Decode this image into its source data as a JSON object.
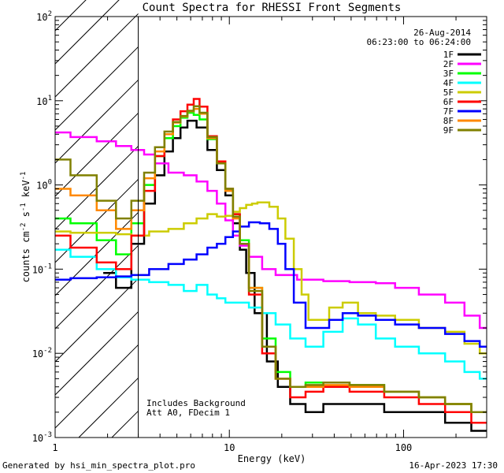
{
  "chart_data": {
    "type": "line",
    "title": "Count Spectra for RHESSI Front Segments",
    "xlabel": "Energy (keV)",
    "ylabel_parts": [
      "counts cm",
      "-2",
      " s",
      "-1",
      " keV",
      "-1"
    ],
    "xscale": "log",
    "yscale": "log",
    "xlim": [
      1,
      300
    ],
    "ylim": [
      0.001,
      100
    ],
    "x_ticks": [
      {
        "value": 1,
        "label": "1"
      },
      {
        "value": 10,
        "label": "10"
      },
      {
        "value": 100,
        "label": "100"
      }
    ],
    "y_ticks": [
      {
        "value": 0.001,
        "base": "10",
        "exp": "-3"
      },
      {
        "value": 0.01,
        "base": "10",
        "exp": "-2"
      },
      {
        "value": 0.1,
        "base": "10",
        "exp": "-1"
      },
      {
        "value": 1,
        "base": "10",
        "exp": "0"
      },
      {
        "value": 10,
        "base": "10",
        "exp": "1"
      },
      {
        "value": 100,
        "base": "10",
        "exp": "2"
      }
    ],
    "hatched_region": [
      1,
      3
    ],
    "date": "26-Aug-2014",
    "time_range": "06:23:00 to 06:24:00",
    "annotations": [
      "Includes Background",
      "Att A0, FDecim 1"
    ],
    "series": [
      {
        "name": "1F",
        "color": "#000000",
        "points": [
          [
            2,
            0.09
          ],
          [
            2.5,
            0.06
          ],
          [
            3,
            0.2
          ],
          [
            3.5,
            0.6
          ],
          [
            4,
            1.3
          ],
          [
            4.5,
            2.5
          ],
          [
            5,
            3.6
          ],
          [
            5.5,
            4.8
          ],
          [
            6,
            5.8
          ],
          [
            7,
            4.8
          ],
          [
            8,
            2.6
          ],
          [
            9,
            1.5
          ],
          [
            10,
            0.75
          ],
          [
            11,
            0.35
          ],
          [
            12,
            0.17
          ],
          [
            13,
            0.09
          ],
          [
            15,
            0.03
          ],
          [
            18,
            0.008
          ],
          [
            20,
            0.004
          ],
          [
            25,
            0.0025
          ],
          [
            30,
            0.002
          ],
          [
            40,
            0.0025
          ],
          [
            60,
            0.0025
          ],
          [
            100,
            0.002
          ],
          [
            150,
            0.002
          ],
          [
            200,
            0.0015
          ],
          [
            300,
            0.0012
          ]
        ]
      },
      {
        "name": "2F",
        "color": "#ff00ff",
        "points": [
          [
            1,
            4.2
          ],
          [
            1.5,
            3.7
          ],
          [
            2,
            3.3
          ],
          [
            2.5,
            2.9
          ],
          [
            3,
            2.6
          ],
          [
            3.5,
            2.3
          ],
          [
            4,
            1.8
          ],
          [
            5,
            1.4
          ],
          [
            6,
            1.3
          ],
          [
            7,
            1.1
          ],
          [
            8,
            0.85
          ],
          [
            9,
            0.6
          ],
          [
            10,
            0.38
          ],
          [
            11,
            0.25
          ],
          [
            12,
            0.19
          ],
          [
            14,
            0.14
          ],
          [
            17,
            0.1
          ],
          [
            20,
            0.085
          ],
          [
            30,
            0.075
          ],
          [
            40,
            0.072
          ],
          [
            60,
            0.07
          ],
          [
            80,
            0.068
          ],
          [
            100,
            0.06
          ],
          [
            150,
            0.05
          ],
          [
            200,
            0.04
          ],
          [
            250,
            0.028
          ],
          [
            300,
            0.02
          ]
        ]
      },
      {
        "name": "3F",
        "color": "#00ff00",
        "points": [
          [
            1,
            0.4
          ],
          [
            1.5,
            0.35
          ],
          [
            2,
            0.22
          ],
          [
            2.5,
            0.15
          ],
          [
            3,
            0.35
          ],
          [
            3.5,
            1.0
          ],
          [
            4,
            2.2
          ],
          [
            4.5,
            3.6
          ],
          [
            5,
            5.0
          ],
          [
            5.5,
            6.3
          ],
          [
            6,
            7.2
          ],
          [
            6.5,
            6.8
          ],
          [
            7,
            6.0
          ],
          [
            8,
            3.5
          ],
          [
            9,
            1.8
          ],
          [
            10,
            0.9
          ],
          [
            11,
            0.45
          ],
          [
            12,
            0.22
          ],
          [
            14,
            0.06
          ],
          [
            17,
            0.015
          ],
          [
            20,
            0.006
          ],
          [
            25,
            0.004
          ],
          [
            30,
            0.0045
          ],
          [
            40,
            0.0045
          ],
          [
            60,
            0.0042
          ],
          [
            100,
            0.0035
          ],
          [
            150,
            0.003
          ],
          [
            200,
            0.0025
          ],
          [
            300,
            0.002
          ]
        ]
      },
      {
        "name": "4F",
        "color": "#00ffff",
        "points": [
          [
            1,
            0.17
          ],
          [
            1.5,
            0.14
          ],
          [
            2,
            0.1
          ],
          [
            2.5,
            0.08
          ],
          [
            3,
            0.075
          ],
          [
            4,
            0.07
          ],
          [
            5,
            0.065
          ],
          [
            6,
            0.055
          ],
          [
            7,
            0.065
          ],
          [
            8,
            0.05
          ],
          [
            9,
            0.045
          ],
          [
            10,
            0.04
          ],
          [
            12,
            0.04
          ],
          [
            14,
            0.035
          ],
          [
            17,
            0.03
          ],
          [
            20,
            0.022
          ],
          [
            25,
            0.015
          ],
          [
            30,
            0.012
          ],
          [
            40,
            0.018
          ],
          [
            50,
            0.026
          ],
          [
            60,
            0.022
          ],
          [
            80,
            0.015
          ],
          [
            100,
            0.012
          ],
          [
            150,
            0.01
          ],
          [
            200,
            0.008
          ],
          [
            250,
            0.006
          ],
          [
            300,
            0.005
          ]
        ]
      },
      {
        "name": "5F",
        "color": "#cccc00",
        "points": [
          [
            1,
            0.28
          ],
          [
            1.5,
            0.27
          ],
          [
            2,
            0.27
          ],
          [
            2.5,
            0.26
          ],
          [
            3,
            0.25
          ],
          [
            4,
            0.28
          ],
          [
            5,
            0.3
          ],
          [
            6,
            0.35
          ],
          [
            7,
            0.4
          ],
          [
            8,
            0.45
          ],
          [
            9,
            0.42
          ],
          [
            10,
            0.43
          ],
          [
            11,
            0.48
          ],
          [
            12,
            0.53
          ],
          [
            13,
            0.58
          ],
          [
            14,
            0.6
          ],
          [
            15,
            0.62
          ],
          [
            16,
            0.62
          ],
          [
            18,
            0.55
          ],
          [
            20,
            0.4
          ],
          [
            22,
            0.23
          ],
          [
            25,
            0.1
          ],
          [
            27,
            0.05
          ],
          [
            30,
            0.025
          ],
          [
            35,
            0.025
          ],
          [
            40,
            0.035
          ],
          [
            50,
            0.04
          ],
          [
            60,
            0.03
          ],
          [
            80,
            0.028
          ],
          [
            100,
            0.025
          ],
          [
            150,
            0.02
          ],
          [
            200,
            0.018
          ],
          [
            250,
            0.013
          ],
          [
            300,
            0.01
          ]
        ]
      },
      {
        "name": "6F",
        "color": "#ff0000",
        "points": [
          [
            1,
            0.25
          ],
          [
            1.5,
            0.18
          ],
          [
            2,
            0.12
          ],
          [
            2.5,
            0.1
          ],
          [
            3,
            0.25
          ],
          [
            3.5,
            0.85
          ],
          [
            4,
            2.2
          ],
          [
            4.5,
            4.0
          ],
          [
            5,
            6.0
          ],
          [
            5.5,
            7.5
          ],
          [
            6,
            9.0
          ],
          [
            6.5,
            10.5
          ],
          [
            7,
            8.5
          ],
          [
            8,
            3.8
          ],
          [
            9,
            1.9
          ],
          [
            10,
            0.9
          ],
          [
            11,
            0.45
          ],
          [
            12,
            0.2
          ],
          [
            14,
            0.05
          ],
          [
            17,
            0.01
          ],
          [
            20,
            0.005
          ],
          [
            25,
            0.003
          ],
          [
            30,
            0.0035
          ],
          [
            40,
            0.004
          ],
          [
            60,
            0.0035
          ],
          [
            100,
            0.003
          ],
          [
            150,
            0.0025
          ],
          [
            200,
            0.002
          ],
          [
            300,
            0.0015
          ]
        ]
      },
      {
        "name": "7F",
        "color": "#0000ff",
        "points": [
          [
            1,
            0.075
          ],
          [
            1.5,
            0.078
          ],
          [
            2,
            0.08
          ],
          [
            2.5,
            0.082
          ],
          [
            3,
            0.085
          ],
          [
            4,
            0.1
          ],
          [
            5,
            0.115
          ],
          [
            6,
            0.13
          ],
          [
            7,
            0.15
          ],
          [
            8,
            0.18
          ],
          [
            9,
            0.2
          ],
          [
            10,
            0.24
          ],
          [
            11,
            0.28
          ],
          [
            12,
            0.32
          ],
          [
            14,
            0.36
          ],
          [
            16,
            0.35
          ],
          [
            18,
            0.3
          ],
          [
            20,
            0.2
          ],
          [
            22,
            0.1
          ],
          [
            25,
            0.04
          ],
          [
            30,
            0.02
          ],
          [
            35,
            0.02
          ],
          [
            40,
            0.025
          ],
          [
            50,
            0.03
          ],
          [
            60,
            0.028
          ],
          [
            80,
            0.025
          ],
          [
            100,
            0.022
          ],
          [
            150,
            0.02
          ],
          [
            200,
            0.017
          ],
          [
            250,
            0.014
          ],
          [
            300,
            0.012
          ]
        ]
      },
      {
        "name": "8F",
        "color": "#ff8800",
        "points": [
          [
            1,
            0.9
          ],
          [
            1.5,
            0.75
          ],
          [
            2,
            0.5
          ],
          [
            2.5,
            0.3
          ],
          [
            3,
            0.5
          ],
          [
            3.5,
            1.2
          ],
          [
            4,
            2.5
          ],
          [
            4.5,
            4.0
          ],
          [
            5,
            5.5
          ],
          [
            5.5,
            6.5
          ],
          [
            6,
            7.5
          ],
          [
            6.5,
            8.0
          ],
          [
            7,
            7.0
          ],
          [
            8,
            3.6
          ],
          [
            9,
            1.8
          ],
          [
            10,
            0.85
          ],
          [
            11,
            0.4
          ],
          [
            12,
            0.2
          ],
          [
            14,
            0.06
          ],
          [
            17,
            0.012
          ],
          [
            20,
            0.005
          ],
          [
            25,
            0.004
          ],
          [
            30,
            0.004
          ],
          [
            40,
            0.0042
          ],
          [
            60,
            0.004
          ],
          [
            100,
            0.0035
          ],
          [
            150,
            0.003
          ],
          [
            200,
            0.0025
          ],
          [
            300,
            0.002
          ]
        ]
      },
      {
        "name": "9F",
        "color": "#808000",
        "points": [
          [
            1,
            2.0
          ],
          [
            1.5,
            1.3
          ],
          [
            2,
            0.65
          ],
          [
            2.5,
            0.4
          ],
          [
            3,
            0.65
          ],
          [
            3.5,
            1.4
          ],
          [
            4,
            2.8
          ],
          [
            4.5,
            4.3
          ],
          [
            5,
            5.6
          ],
          [
            5.5,
            6.6
          ],
          [
            6,
            7.6
          ],
          [
            6.5,
            8.6
          ],
          [
            7,
            7.2
          ],
          [
            8,
            3.7
          ],
          [
            9,
            1.8
          ],
          [
            10,
            0.9
          ],
          [
            11,
            0.42
          ],
          [
            12,
            0.2
          ],
          [
            14,
            0.055
          ],
          [
            17,
            0.012
          ],
          [
            20,
            0.005
          ],
          [
            25,
            0.004
          ],
          [
            30,
            0.0042
          ],
          [
            40,
            0.0045
          ],
          [
            60,
            0.0042
          ],
          [
            100,
            0.0035
          ],
          [
            150,
            0.003
          ],
          [
            200,
            0.0025
          ],
          [
            300,
            0.002
          ]
        ]
      }
    ]
  },
  "footer": {
    "generator": "Generated by hsi_min_spectra_plot.pro",
    "timestamp": "16-Apr-2023 17:30"
  }
}
